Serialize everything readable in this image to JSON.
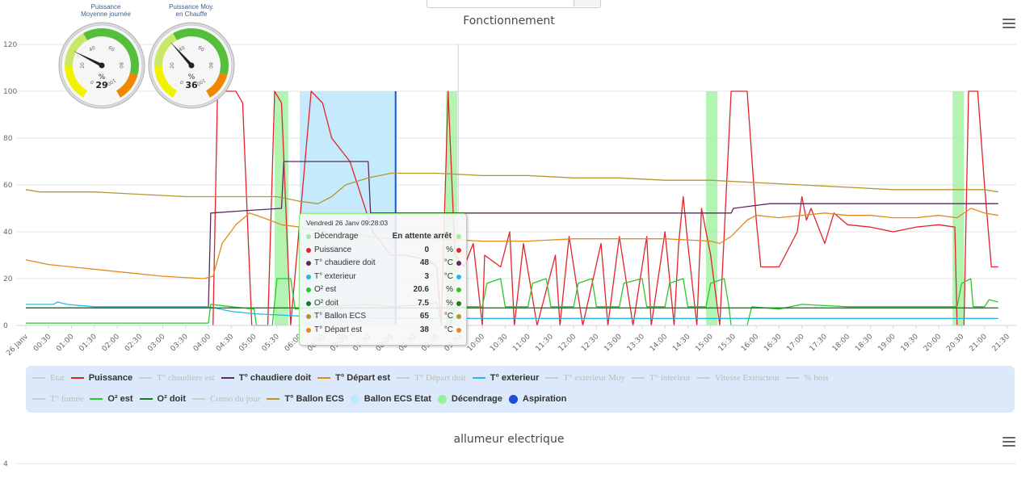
{
  "top_input": {
    "value": ""
  },
  "gauges": [
    {
      "title_line1": "Puissance",
      "title_line2": "Moyenne journée",
      "unit": "%",
      "value": 29,
      "max": 100,
      "ticks": [
        "0",
        "20",
        "40",
        "60",
        "80",
        "100"
      ]
    },
    {
      "title_line1": "Puissance Moy.",
      "title_line2": "en Chauffe",
      "unit": "%",
      "value": 36,
      "max": 100,
      "ticks": [
        "0",
        "20",
        "40",
        "60",
        "80",
        "100"
      ]
    }
  ],
  "chart_data": {
    "type": "line",
    "title": "Fonctionnement",
    "xlabel": "",
    "ylabel": "",
    "ylim": [
      0,
      120
    ],
    "yticks": [
      0,
      20,
      40,
      60,
      80,
      100,
      120
    ],
    "xlim": [
      0,
      21.5
    ],
    "xticks": [
      "26 Janv",
      "00:30",
      "01:00",
      "01:30",
      "02:00",
      "02:30",
      "03:00",
      "03:30",
      "04:00",
      "04:30",
      "05:00",
      "05:30",
      "06:00",
      "06:30",
      "07:00",
      "07:30",
      "08:00",
      "08:30",
      "09:00",
      "09:30",
      "10:00",
      "10:30",
      "11:00",
      "11:30",
      "12:00",
      "12:30",
      "13:00",
      "13:30",
      "14:00",
      "14:30",
      "15:00",
      "15:30",
      "16:00",
      "16:30",
      "17:00",
      "17:30",
      "18:00",
      "18:30",
      "19:00",
      "19:30",
      "20:00",
      "20:30",
      "21:00",
      "21:30"
    ],
    "series": [
      {
        "name": "Puissance",
        "color": "#e0242a",
        "points": [
          [
            4.1,
            0
          ],
          [
            4.2,
            100
          ],
          [
            4.6,
            100
          ],
          [
            4.75,
            95
          ],
          [
            4.95,
            0
          ],
          [
            5.0,
            0
          ],
          [
            5.3,
            0
          ],
          [
            5.45,
            100
          ],
          [
            5.6,
            95
          ],
          [
            5.8,
            0
          ],
          [
            6.25,
            100
          ],
          [
            6.5,
            95
          ],
          [
            6.7,
            80
          ],
          [
            7.1,
            70
          ],
          [
            7.35,
            55
          ],
          [
            7.6,
            40
          ],
          [
            8.0,
            30
          ],
          [
            8.3,
            30
          ],
          [
            8.8,
            28
          ],
          [
            9.0,
            25
          ],
          [
            9.1,
            0
          ],
          [
            9.25,
            100
          ],
          [
            9.4,
            30
          ],
          [
            9.6,
            25
          ],
          [
            9.8,
            35
          ],
          [
            10.0,
            0
          ],
          [
            10.05,
            30
          ],
          [
            10.4,
            25
          ],
          [
            10.6,
            40
          ],
          [
            10.7,
            0
          ],
          [
            10.9,
            35
          ],
          [
            11.2,
            0
          ],
          [
            11.6,
            30
          ],
          [
            11.7,
            0
          ],
          [
            11.9,
            38
          ],
          [
            12.2,
            0
          ],
          [
            12.6,
            35
          ],
          [
            12.75,
            0
          ],
          [
            13.0,
            38
          ],
          [
            13.3,
            0
          ],
          [
            13.6,
            38
          ],
          [
            13.7,
            0
          ],
          [
            14.0,
            40
          ],
          [
            14.2,
            0
          ],
          [
            14.3,
            35
          ],
          [
            14.4,
            55
          ],
          [
            14.5,
            35
          ],
          [
            14.7,
            0
          ],
          [
            14.8,
            50
          ],
          [
            15.0,
            30
          ],
          [
            15.2,
            0
          ],
          [
            15.45,
            100
          ],
          [
            15.8,
            100
          ],
          [
            16.0,
            45
          ],
          [
            16.1,
            25
          ],
          [
            16.5,
            25
          ],
          [
            16.9,
            40
          ],
          [
            17.0,
            55
          ],
          [
            17.1,
            45
          ],
          [
            17.2,
            50
          ],
          [
            17.5,
            35
          ],
          [
            17.7,
            48
          ],
          [
            18.0,
            43
          ],
          [
            18.5,
            42
          ],
          [
            19.0,
            40
          ],
          [
            19.5,
            42
          ],
          [
            20.0,
            43
          ],
          [
            20.35,
            42
          ],
          [
            20.4,
            0
          ],
          [
            20.55,
            0
          ],
          [
            20.65,
            100
          ],
          [
            20.85,
            100
          ],
          [
            21.0,
            60
          ],
          [
            21.15,
            25
          ],
          [
            21.3,
            25
          ]
        ]
      },
      {
        "name": "T° chaudiere doit",
        "color": "#5c2a5e",
        "points": [
          [
            0,
            7.5
          ],
          [
            4.0,
            7.5
          ],
          [
            4.05,
            48
          ],
          [
            4.8,
            49
          ],
          [
            5.6,
            50
          ],
          [
            5.65,
            70
          ],
          [
            7.5,
            70
          ],
          [
            7.55,
            48
          ],
          [
            15.45,
            48
          ],
          [
            15.5,
            50
          ],
          [
            16.3,
            52
          ],
          [
            21.3,
            52
          ]
        ]
      },
      {
        "name": "T° Départ est",
        "color": "#e38a1e",
        "points": [
          [
            0,
            28
          ],
          [
            0.5,
            26
          ],
          [
            1.0,
            25
          ],
          [
            2.0,
            23
          ],
          [
            3.0,
            21
          ],
          [
            3.9,
            20
          ],
          [
            4.1,
            21
          ],
          [
            4.3,
            35
          ],
          [
            4.6,
            43
          ],
          [
            4.9,
            48
          ],
          [
            5.2,
            46
          ],
          [
            5.6,
            43
          ],
          [
            6.0,
            42
          ],
          [
            6.5,
            40
          ],
          [
            7.0,
            39
          ],
          [
            7.5,
            38
          ],
          [
            8.0,
            37
          ],
          [
            9.0,
            37
          ],
          [
            10.0,
            36
          ],
          [
            11.0,
            36
          ],
          [
            12.0,
            37
          ],
          [
            13.0,
            37
          ],
          [
            14.0,
            37
          ],
          [
            15.0,
            36
          ],
          [
            15.2,
            35
          ],
          [
            15.45,
            38
          ],
          [
            15.8,
            45
          ],
          [
            16.0,
            47
          ],
          [
            16.5,
            46
          ],
          [
            17.0,
            47
          ],
          [
            17.5,
            48
          ],
          [
            18.0,
            47
          ],
          [
            18.5,
            47
          ],
          [
            19.0,
            46
          ],
          [
            19.5,
            46
          ],
          [
            20.0,
            47
          ],
          [
            20.4,
            46
          ],
          [
            20.7,
            50
          ],
          [
            21.0,
            48
          ],
          [
            21.3,
            47
          ]
        ]
      },
      {
        "name": "T° exterieur",
        "color": "#28b8e6",
        "points": [
          [
            0,
            9
          ],
          [
            0.6,
            9
          ],
          [
            0.7,
            10
          ],
          [
            0.9,
            9
          ],
          [
            1.5,
            8
          ],
          [
            3.0,
            8
          ],
          [
            4.0,
            8
          ],
          [
            4.5,
            6
          ],
          [
            5.0,
            5
          ],
          [
            6.0,
            4
          ],
          [
            8.0,
            3
          ],
          [
            10.0,
            3
          ],
          [
            12.0,
            3
          ],
          [
            14.0,
            3
          ],
          [
            16.0,
            3
          ],
          [
            18.0,
            3
          ],
          [
            20.0,
            3
          ],
          [
            21.3,
            3
          ]
        ]
      },
      {
        "name": "O² est",
        "color": "#2bc72b",
        "points": [
          [
            0,
            1
          ],
          [
            4.0,
            1
          ],
          [
            4.05,
            9
          ],
          [
            4.5,
            8
          ],
          [
            5.0,
            7
          ],
          [
            5.05,
            0
          ],
          [
            5.4,
            0
          ],
          [
            5.5,
            20
          ],
          [
            5.8,
            20
          ],
          [
            5.9,
            7
          ],
          [
            6.5,
            8
          ],
          [
            7.5,
            9
          ],
          [
            8.0,
            8
          ],
          [
            8.8,
            9
          ],
          [
            9.0,
            10
          ],
          [
            9.1,
            0
          ],
          [
            9.3,
            0
          ],
          [
            9.4,
            8
          ],
          [
            10.0,
            8
          ],
          [
            10.1,
            18
          ],
          [
            10.4,
            20
          ],
          [
            10.5,
            8
          ],
          [
            11.0,
            8
          ],
          [
            11.1,
            18
          ],
          [
            11.4,
            20
          ],
          [
            11.5,
            8
          ],
          [
            12.0,
            8
          ],
          [
            12.1,
            18
          ],
          [
            12.4,
            20
          ],
          [
            12.5,
            8
          ],
          [
            13.0,
            8
          ],
          [
            13.1,
            18
          ],
          [
            13.5,
            20
          ],
          [
            13.6,
            8
          ],
          [
            14.0,
            8
          ],
          [
            14.1,
            18
          ],
          [
            14.4,
            20
          ],
          [
            14.5,
            8
          ],
          [
            14.9,
            8
          ],
          [
            15.0,
            18
          ],
          [
            15.3,
            20
          ],
          [
            15.4,
            8
          ],
          [
            15.45,
            0
          ],
          [
            15.8,
            0
          ],
          [
            15.9,
            8
          ],
          [
            16.5,
            7
          ],
          [
            17.0,
            9
          ],
          [
            18.0,
            8
          ],
          [
            19.0,
            8
          ],
          [
            20.0,
            8
          ],
          [
            20.4,
            8
          ],
          [
            20.5,
            18
          ],
          [
            20.7,
            20
          ],
          [
            20.75,
            8
          ],
          [
            21.0,
            8
          ],
          [
            21.1,
            11
          ],
          [
            21.3,
            10
          ]
        ]
      },
      {
        "name": "O² doit",
        "color": "#1d7a1d",
        "points": [
          [
            0,
            7.5
          ],
          [
            21.3,
            7.5
          ]
        ]
      },
      {
        "name": "T° Ballon ECS",
        "color": "#b4962f",
        "points": [
          [
            0,
            58
          ],
          [
            0.3,
            57
          ],
          [
            1.5,
            57
          ],
          [
            2.5,
            56
          ],
          [
            3.5,
            55
          ],
          [
            4.5,
            55
          ],
          [
            5.5,
            55
          ],
          [
            6.0,
            53
          ],
          [
            6.4,
            52
          ],
          [
            6.7,
            55
          ],
          [
            7.0,
            60
          ],
          [
            7.5,
            63
          ],
          [
            8.0,
            65
          ],
          [
            9.0,
            65
          ],
          [
            10.0,
            64
          ],
          [
            11.0,
            64
          ],
          [
            12.0,
            63
          ],
          [
            13.0,
            63
          ],
          [
            14.0,
            62
          ],
          [
            15.0,
            62
          ],
          [
            16.0,
            61
          ],
          [
            17.0,
            60
          ],
          [
            18.0,
            59
          ],
          [
            19.0,
            58
          ],
          [
            20.0,
            58
          ],
          [
            21.0,
            58
          ],
          [
            21.3,
            57
          ]
        ]
      }
    ],
    "bands_decendrage": [
      [
        5.45,
        5.75
      ],
      [
        9.2,
        9.45
      ],
      [
        14.9,
        15.15
      ],
      [
        20.3,
        20.55
      ]
    ],
    "band_ballon_ecs": [
      6.0,
      8.1
    ],
    "aspiration_at": 8.1,
    "crosshair_at": 9.47,
    "legend": [
      {
        "label": "Etat",
        "color": "#cccccc",
        "type": "line",
        "active": false
      },
      {
        "label": "Puissance",
        "color": "#e0242a",
        "type": "line",
        "active": true
      },
      {
        "label": "T° chaudiere est",
        "color": "#cccccc",
        "type": "line",
        "active": false
      },
      {
        "label": "T° chaudiere doit",
        "color": "#5c2a5e",
        "type": "line",
        "active": true
      },
      {
        "label": "T° Départ est",
        "color": "#e38a1e",
        "type": "line",
        "active": true
      },
      {
        "label": "T° Départ doit",
        "color": "#cccccc",
        "type": "line",
        "active": false
      },
      {
        "label": "T° exterieur",
        "color": "#28b8e6",
        "type": "line",
        "active": true
      },
      {
        "label": "T° exterieur Moy",
        "color": "#cccccc",
        "type": "line",
        "active": false
      },
      {
        "label": "T° interieur",
        "color": "#cccccc",
        "type": "line",
        "active": false
      },
      {
        "label": "Vitesse Extracteur",
        "color": "#cccccc",
        "type": "line",
        "active": false
      },
      {
        "label": "% bois",
        "color": "#cccccc",
        "type": "line",
        "active": false
      },
      {
        "label": "T° fumée",
        "color": "#cccccc",
        "type": "line",
        "active": false
      },
      {
        "label": "O² est",
        "color": "#2bc72b",
        "type": "line",
        "active": true
      },
      {
        "label": "O² doit",
        "color": "#1d7a1d",
        "type": "line",
        "active": true
      },
      {
        "label": "Conso du jour",
        "color": "#cccccc",
        "type": "line",
        "active": false
      },
      {
        "label": "T° Ballon ECS",
        "color": "#b4962f",
        "type": "line",
        "active": true
      },
      {
        "label": "Ballon ECS Etat",
        "color": "#bfe8fb",
        "type": "dot",
        "active": true
      },
      {
        "label": "Décendrage",
        "color": "#9af09a",
        "type": "dot",
        "active": true
      },
      {
        "label": "Aspiration",
        "color": "#1f4fd8",
        "type": "dot",
        "active": true
      }
    ]
  },
  "tooltip": {
    "header": "Vendredi 26 Janv 09:28:03",
    "rows": [
      {
        "name": "Décendrage",
        "value": "En attente arrêt",
        "unit": "",
        "color": "#9af09a"
      },
      {
        "name": "Puissance",
        "value": "0",
        "unit": "%",
        "color": "#e0242a"
      },
      {
        "name": "T° chaudiere doit",
        "value": "48",
        "unit": "°C",
        "color": "#5c2a5e"
      },
      {
        "name": "T° exterieur",
        "value": "3",
        "unit": "°C",
        "color": "#28b8e6"
      },
      {
        "name": "O² est",
        "value": "20.6",
        "unit": "%",
        "color": "#2bc72b"
      },
      {
        "name": "O² doit",
        "value": "7.5",
        "unit": "%",
        "color": "#1d7a1d"
      },
      {
        "name": "T° Ballon ECS",
        "value": "65",
        "unit": "°C",
        "color": "#b4962f"
      },
      {
        "name": "T° Départ est",
        "value": "38",
        "unit": "°C",
        "color": "#e38a1e"
      }
    ]
  },
  "second_chart": {
    "title": "allumeur electrique",
    "ytick_top": "4"
  }
}
